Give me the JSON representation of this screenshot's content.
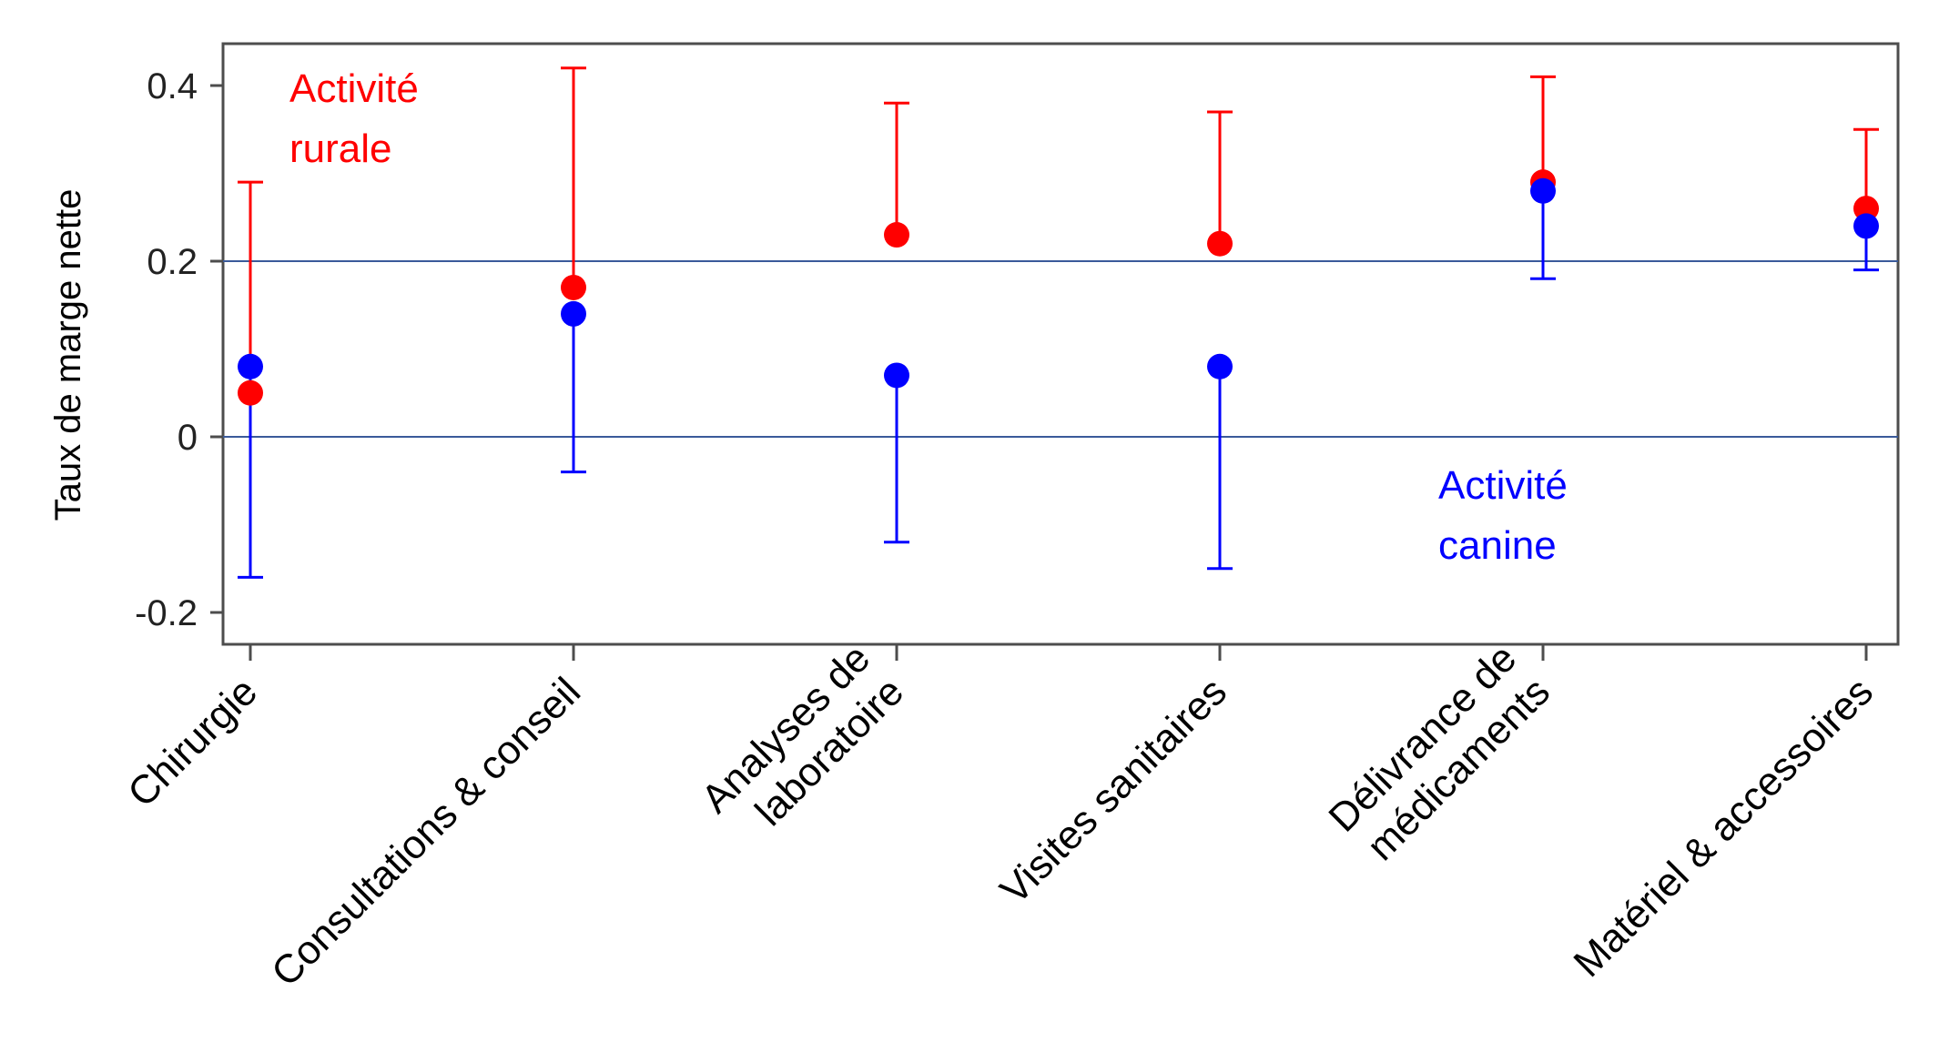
{
  "chart_data": {
    "type": "scatter",
    "title": "",
    "xlabel": "",
    "ylabel": "Taux de marge nette",
    "ylim": [
      -0.24,
      0.45
    ],
    "yticks": [
      {
        "value": 0.4,
        "label": "0.4"
      },
      {
        "value": 0.2,
        "label": "0.2"
      },
      {
        "value": 0,
        "label": "0"
      },
      {
        "value": -0.2,
        "label": "-0.2"
      }
    ],
    "reference_lines": [
      0.2,
      0
    ],
    "categories": [
      {
        "lines": [
          "Chirurgie"
        ]
      },
      {
        "lines": [
          "Consultations & conseil"
        ]
      },
      {
        "lines": [
          "Analyses de",
          "laboratoire"
        ]
      },
      {
        "lines": [
          "Visites sanitaires"
        ]
      },
      {
        "lines": [
          "Délivrance de",
          "médicaments"
        ]
      },
      {
        "lines": [
          "Matériel & accessoires"
        ]
      }
    ],
    "series": [
      {
        "key": "rurale",
        "color": "#ff0000",
        "error_direction": "up",
        "values": [
          0.05,
          0.17,
          0.23,
          0.22,
          0.29,
          0.26
        ],
        "upper": [
          0.29,
          0.42,
          0.38,
          0.37,
          0.41,
          0.35
        ]
      },
      {
        "key": "canine",
        "color": "#0000ff",
        "error_direction": "down",
        "values": [
          0.08,
          0.14,
          0.07,
          0.08,
          0.28,
          0.24
        ],
        "lower": [
          -0.16,
          -0.04,
          -0.12,
          -0.15,
          0.18,
          0.19
        ]
      }
    ],
    "annotations": [
      {
        "series": "rurale",
        "lines": [
          "Activité",
          "rurale"
        ],
        "color": "#ff0000"
      },
      {
        "series": "canine",
        "lines": [
          "Activité",
          "canine"
        ],
        "color": "#0000ff"
      }
    ],
    "gridline_color": "#3a5a9a",
    "grid": false,
    "legend": "none"
  }
}
